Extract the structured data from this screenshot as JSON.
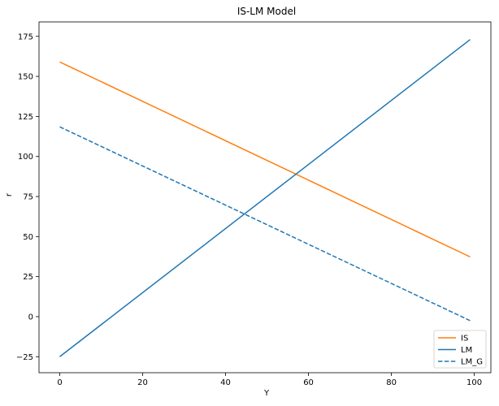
{
  "chart_data": {
    "type": "line",
    "title": "IS-LM Model",
    "xlabel": "Y",
    "ylabel": "r",
    "xlim": [
      -5,
      104
    ],
    "ylim": [
      -35,
      184
    ],
    "xticks": [
      0,
      20,
      40,
      60,
      80,
      100
    ],
    "yticks": [
      -25,
      0,
      25,
      50,
      75,
      100,
      125,
      150,
      175
    ],
    "grid": false,
    "legend_position": "lower-right",
    "series": [
      {
        "name": "IS",
        "color": "#ff7f0e",
        "style": "solid",
        "x": [
          0,
          99
        ],
        "y": [
          159,
          37.3
        ]
      },
      {
        "name": "LM",
        "color": "#1f77b4",
        "style": "solid",
        "x": [
          0,
          99
        ],
        "y": [
          -25,
          173
        ]
      },
      {
        "name": "LM_G",
        "color": "#1f77b4",
        "style": "dashed",
        "x": [
          0,
          99
        ],
        "y": [
          118.5,
          -2.5
        ]
      }
    ]
  }
}
